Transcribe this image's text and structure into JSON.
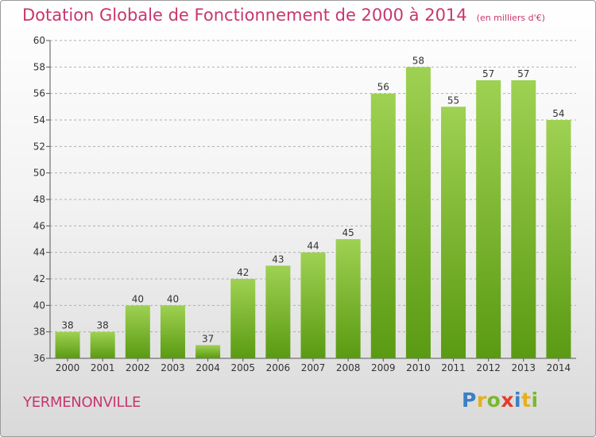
{
  "header": {
    "title": "Dotation Globale de Fonctionnement de 2000 à 2014",
    "subtitle": "(en milliers d'€)"
  },
  "footer": {
    "commune": "YERMENONVILLE",
    "logo_text": "Proxiti"
  },
  "colors": {
    "bar_top": "#9fd152",
    "bar_bottom": "#5a9a12",
    "title": "#c8366e",
    "grid": "#b0b0b0"
  },
  "chart_data": {
    "type": "bar",
    "title": "Dotation Globale de Fonctionnement de 2000 à 2014",
    "subtitle": "(en milliers d'€)",
    "categories": [
      "2000",
      "2001",
      "2002",
      "2003",
      "2004",
      "2005",
      "2006",
      "2007",
      "2008",
      "2009",
      "2010",
      "2011",
      "2012",
      "2013",
      "2014"
    ],
    "values": [
      38,
      38,
      40,
      40,
      37,
      42,
      43,
      44,
      45,
      56,
      58,
      55,
      57,
      57,
      54
    ],
    "ylim": [
      36,
      60
    ],
    "yticks": [
      36,
      38,
      40,
      42,
      44,
      46,
      48,
      50,
      52,
      54,
      56,
      58,
      60
    ],
    "grid": true,
    "data_labels": true
  }
}
